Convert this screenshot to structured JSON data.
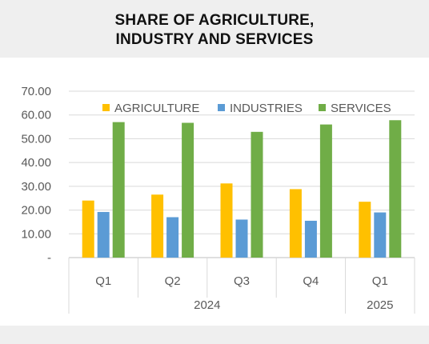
{
  "chart_data": {
    "type": "bar",
    "title_lines": [
      "SHARE OF AGRICULTURE,",
      "INDUSTRY AND SERVICES"
    ],
    "categories": [
      "Q1",
      "Q2",
      "Q3",
      "Q4",
      "Q1"
    ],
    "groups": [
      {
        "label": "2024",
        "span": 4
      },
      {
        "label": "2025",
        "span": 1
      }
    ],
    "series": [
      {
        "name": "AGRICULTURE",
        "color": "#FFC000",
        "values": [
          24.0,
          26.5,
          31.2,
          28.8,
          23.5
        ]
      },
      {
        "name": "INDUSTRIES",
        "color": "#5B9BD5",
        "values": [
          19.2,
          17.0,
          16.0,
          15.5,
          19.0
        ]
      },
      {
        "name": "SERVICES",
        "color": "#70AD47",
        "values": [
          57.0,
          56.7,
          52.9,
          56.0,
          57.8
        ]
      }
    ],
    "y_ticks": [
      "-",
      "10.00",
      "20.00",
      "30.00",
      "40.00",
      "50.00",
      "60.00",
      "70.00"
    ],
    "ylim": [
      0,
      70
    ],
    "grid": true,
    "legend_position": "top"
  }
}
